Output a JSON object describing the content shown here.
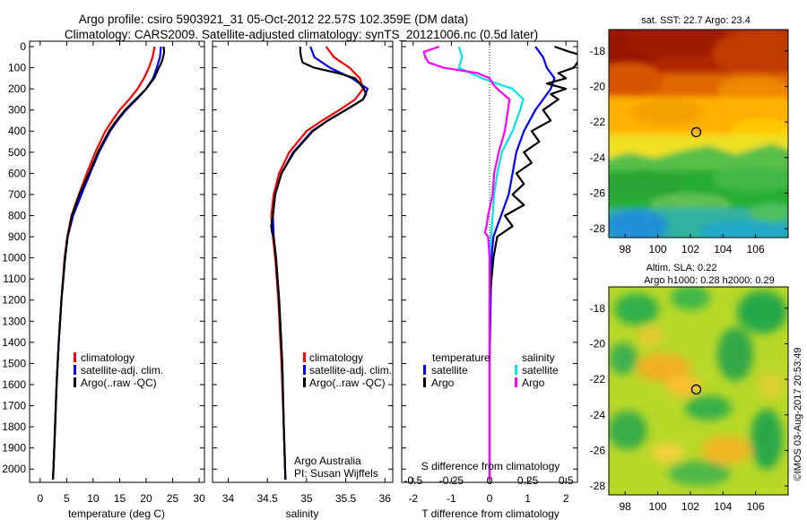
{
  "header": {
    "line1": "Argo profile: csiro 5903921_31 05-Oct-2012 22.57S 102.359E (DM data)",
    "line2": "Climatology: CARS2009. Satellite-adjusted climatology: synTS_20121006.nc (0.5d later)"
  },
  "credit": "Argo Australia",
  "pi": "PI: Susan Wijffels",
  "stamp": "©IMOS 03-Aug-2017 20:53:49",
  "colors": {
    "climatology": "#ff0000",
    "satellite": "#0000ff",
    "argo": "#000000",
    "sat_salinity": "#00e5e5",
    "argo_salinity": "#ff00ff"
  },
  "chart_data": [
    {
      "type": "line",
      "panel": "temperature",
      "xlabel": "temperature (deg C)",
      "ylabel": "",
      "xlim": [
        -2,
        31
      ],
      "ylim": [
        2070,
        0
      ],
      "xticks": [
        "0",
        "5",
        "10",
        "15",
        "20",
        "25",
        "30"
      ],
      "yticks": [
        "0",
        "100",
        "200",
        "300",
        "400",
        "500",
        "600",
        "700",
        "800",
        "900",
        "1000",
        "1100",
        "1200",
        "1300",
        "1400",
        "1500",
        "1600",
        "1700",
        "1800",
        "1900",
        "2000"
      ],
      "legend": [
        "climatology",
        "satellite-adj. clim.",
        "Argo(..raw -QC)"
      ],
      "legend_position": "lower-right",
      "series": [
        {
          "name": "climatology",
          "color": "#ff0000",
          "depth": [
            0,
            50,
            100,
            150,
            200,
            250,
            300,
            350,
            400,
            500,
            600,
            700,
            800,
            900,
            1000,
            1200,
            1400,
            1600,
            1800,
            2000,
            2050
          ],
          "values": [
            21.6,
            21.2,
            20.5,
            19.6,
            18.4,
            16.8,
            15.0,
            13.6,
            12.3,
            10.4,
            8.8,
            7.3,
            5.9,
            5.1,
            4.6,
            4.0,
            3.5,
            3.1,
            2.8,
            2.5,
            2.4
          ]
        },
        {
          "name": "satellite-adj. clim.",
          "color": "#0000ff",
          "depth": [
            0,
            50,
            100,
            150,
            200,
            250,
            300,
            350,
            400,
            500,
            600,
            700,
            800,
            900,
            1000,
            1200,
            1400,
            1600,
            1800,
            2000,
            2050
          ],
          "values": [
            22.8,
            22.6,
            22.0,
            21.3,
            20.0,
            18.2,
            16.2,
            14.6,
            13.2,
            11.1,
            9.4,
            7.8,
            6.2,
            5.2,
            4.7,
            4.0,
            3.5,
            3.1,
            2.8,
            2.5,
            2.4
          ]
        },
        {
          "name": "Argo(..raw -QC)",
          "color": "#000000",
          "depth": [
            0,
            25,
            50,
            75,
            100,
            150,
            200,
            250,
            300,
            350,
            400,
            500,
            600,
            700,
            800,
            900,
            1000,
            1200,
            1400,
            1600,
            1800,
            2000,
            2050
          ],
          "values": [
            23.3,
            23.4,
            23.2,
            22.9,
            22.4,
            21.5,
            20.0,
            18.0,
            16.0,
            14.4,
            13.0,
            10.9,
            9.2,
            7.4,
            6.0,
            5.2,
            4.7,
            4.0,
            3.5,
            3.1,
            2.8,
            2.5,
            2.4
          ]
        }
      ]
    },
    {
      "type": "line",
      "panel": "salinity",
      "xlabel": "salinity",
      "ylabel": "",
      "xlim": [
        33.8,
        36.1
      ],
      "ylim": [
        2070,
        0
      ],
      "xticks": [
        "34",
        "34.5",
        "35",
        "35.5",
        "36"
      ],
      "legend": [
        "climatology",
        "satellite-adj. clim.",
        "Argo(..raw -QC)"
      ],
      "legend_position": "lower-right",
      "series": [
        {
          "name": "climatology",
          "color": "#ff0000",
          "depth": [
            0,
            50,
            100,
            150,
            200,
            250,
            300,
            350,
            400,
            500,
            600,
            700,
            800,
            900,
            1000,
            1200,
            1500,
            1800,
            2050
          ],
          "values": [
            35.25,
            35.35,
            35.55,
            35.68,
            35.72,
            35.62,
            35.42,
            35.2,
            35.0,
            34.78,
            34.65,
            34.58,
            34.55,
            34.57,
            34.6,
            34.64,
            34.68,
            34.71,
            34.73
          ]
        },
        {
          "name": "satellite-adj. clim.",
          "color": "#0000ff",
          "depth": [
            0,
            50,
            100,
            150,
            200,
            250,
            300,
            350,
            400,
            500,
            600,
            700,
            800,
            900,
            1000,
            1200,
            1500,
            1800,
            2050
          ],
          "values": [
            35.05,
            35.1,
            35.3,
            35.58,
            35.78,
            35.72,
            35.5,
            35.27,
            35.07,
            34.83,
            34.68,
            34.6,
            34.57,
            34.58,
            34.61,
            34.65,
            34.69,
            34.71,
            34.73
          ]
        },
        {
          "name": "Argo(..raw -QC)",
          "color": "#000000",
          "depth": [
            0,
            25,
            50,
            75,
            100,
            125,
            150,
            175,
            200,
            225,
            250,
            300,
            350,
            400,
            500,
            600,
            700,
            800,
            850,
            880,
            900,
            1000,
            1200,
            1500,
            1800,
            2050
          ],
          "values": [
            34.92,
            34.92,
            34.93,
            34.95,
            35.1,
            35.4,
            35.62,
            35.68,
            35.73,
            35.76,
            35.72,
            35.5,
            35.27,
            35.08,
            34.84,
            34.68,
            34.6,
            34.57,
            34.55,
            34.56,
            34.58,
            34.61,
            34.65,
            34.69,
            34.71,
            34.73
          ]
        }
      ]
    },
    {
      "type": "line",
      "panel": "difference",
      "xlabel": "T difference from climatology",
      "xlabel_top": "S difference from climatology",
      "xlim": [
        -2.3,
        2.3
      ],
      "ylim": [
        2070,
        0
      ],
      "xticks": [
        "-2",
        "-1",
        "0",
        "1",
        "2"
      ],
      "xticks_salinity": [
        "-0.5",
        "-0.25",
        "0",
        "0.25",
        "0.5"
      ],
      "legend": {
        "temperature_header": "temperature",
        "salinity_header": "salinity",
        "t_satellite": "satellite",
        "t_argo": "Argo",
        "s_satellite": "satellite",
        "s_argo": "Argo"
      },
      "series": [
        {
          "name": "T satellite",
          "color": "#0000ff",
          "depth": [
            0,
            50,
            100,
            150,
            200,
            300,
            400,
            500,
            600,
            700,
            800,
            900,
            1000,
            1500,
            2050
          ],
          "values": [
            1.2,
            1.4,
            1.5,
            1.7,
            1.6,
            1.2,
            0.9,
            0.7,
            0.6,
            0.5,
            0.3,
            0.1,
            0.05,
            0.0,
            0.0
          ]
        },
        {
          "name": "T Argo",
          "color": "#000000",
          "depth": [
            0,
            25,
            50,
            75,
            100,
            125,
            150,
            175,
            200,
            225,
            250,
            300,
            350,
            400,
            450,
            500,
            550,
            600,
            650,
            700,
            750,
            800,
            850,
            900,
            1000,
            1200,
            1500,
            2050
          ],
          "values": [
            1.7,
            2.1,
            2.6,
            2.3,
            2.2,
            1.8,
            2.0,
            1.5,
            2.0,
            1.6,
            1.8,
            1.4,
            1.6,
            1.1,
            1.3,
            0.9,
            1.1,
            0.7,
            0.9,
            0.6,
            0.9,
            0.4,
            0.6,
            0.2,
            0.1,
            0.0,
            0.0,
            0.0
          ]
        },
        {
          "name": "S satellite",
          "color": "#00e5e5",
          "depth": [
            0,
            50,
            100,
            150,
            200,
            250,
            300,
            400,
            500,
            600,
            700,
            800,
            900,
            1000,
            1500,
            2050
          ],
          "values": [
            -0.2,
            -0.18,
            -0.2,
            -0.05,
            0.15,
            0.22,
            0.2,
            0.15,
            0.08,
            0.05,
            0.03,
            0.02,
            0.01,
            0.0,
            0.0,
            0.0
          ]
        },
        {
          "name": "S Argo",
          "color": "#ff00ff",
          "depth": [
            0,
            25,
            50,
            75,
            100,
            125,
            150,
            175,
            200,
            250,
            300,
            400,
            500,
            600,
            700,
            800,
            850,
            880,
            900,
            1000,
            1500,
            2050
          ],
          "values": [
            -0.33,
            -0.43,
            -0.42,
            -0.4,
            -0.3,
            -0.08,
            0.0,
            0.02,
            0.05,
            0.13,
            0.12,
            0.1,
            0.06,
            0.03,
            0.02,
            -0.01,
            -0.02,
            -0.03,
            -0.01,
            0.0,
            0.0,
            0.0
          ]
        }
      ]
    },
    {
      "type": "heatmap",
      "panel": "sst-map",
      "title": "sat. SST: 22.7 Argo: 23.4",
      "xlim": [
        97,
        108
      ],
      "ylim": [
        -28.5,
        -16.8
      ],
      "xticks": [
        "98",
        "100",
        "102",
        "104",
        "106"
      ],
      "yticks": [
        "-18",
        "-20",
        "-22",
        "-24",
        "-26",
        "-28"
      ],
      "marker": {
        "lon": 102.359,
        "lat": -22.57
      }
    },
    {
      "type": "heatmap",
      "panel": "sla-map",
      "title": "Altim. SLA: 0.22",
      "subtitle": "Argo h1000: 0.28 h2000: 0.29",
      "xlim": [
        97,
        108
      ],
      "ylim": [
        -28.5,
        -16.8
      ],
      "xticks": [
        "98",
        "100",
        "102",
        "104",
        "106"
      ],
      "yticks": [
        "-18",
        "-20",
        "-22",
        "-24",
        "-26",
        "-28"
      ],
      "marker": {
        "lon": 102.359,
        "lat": -22.57
      }
    }
  ]
}
